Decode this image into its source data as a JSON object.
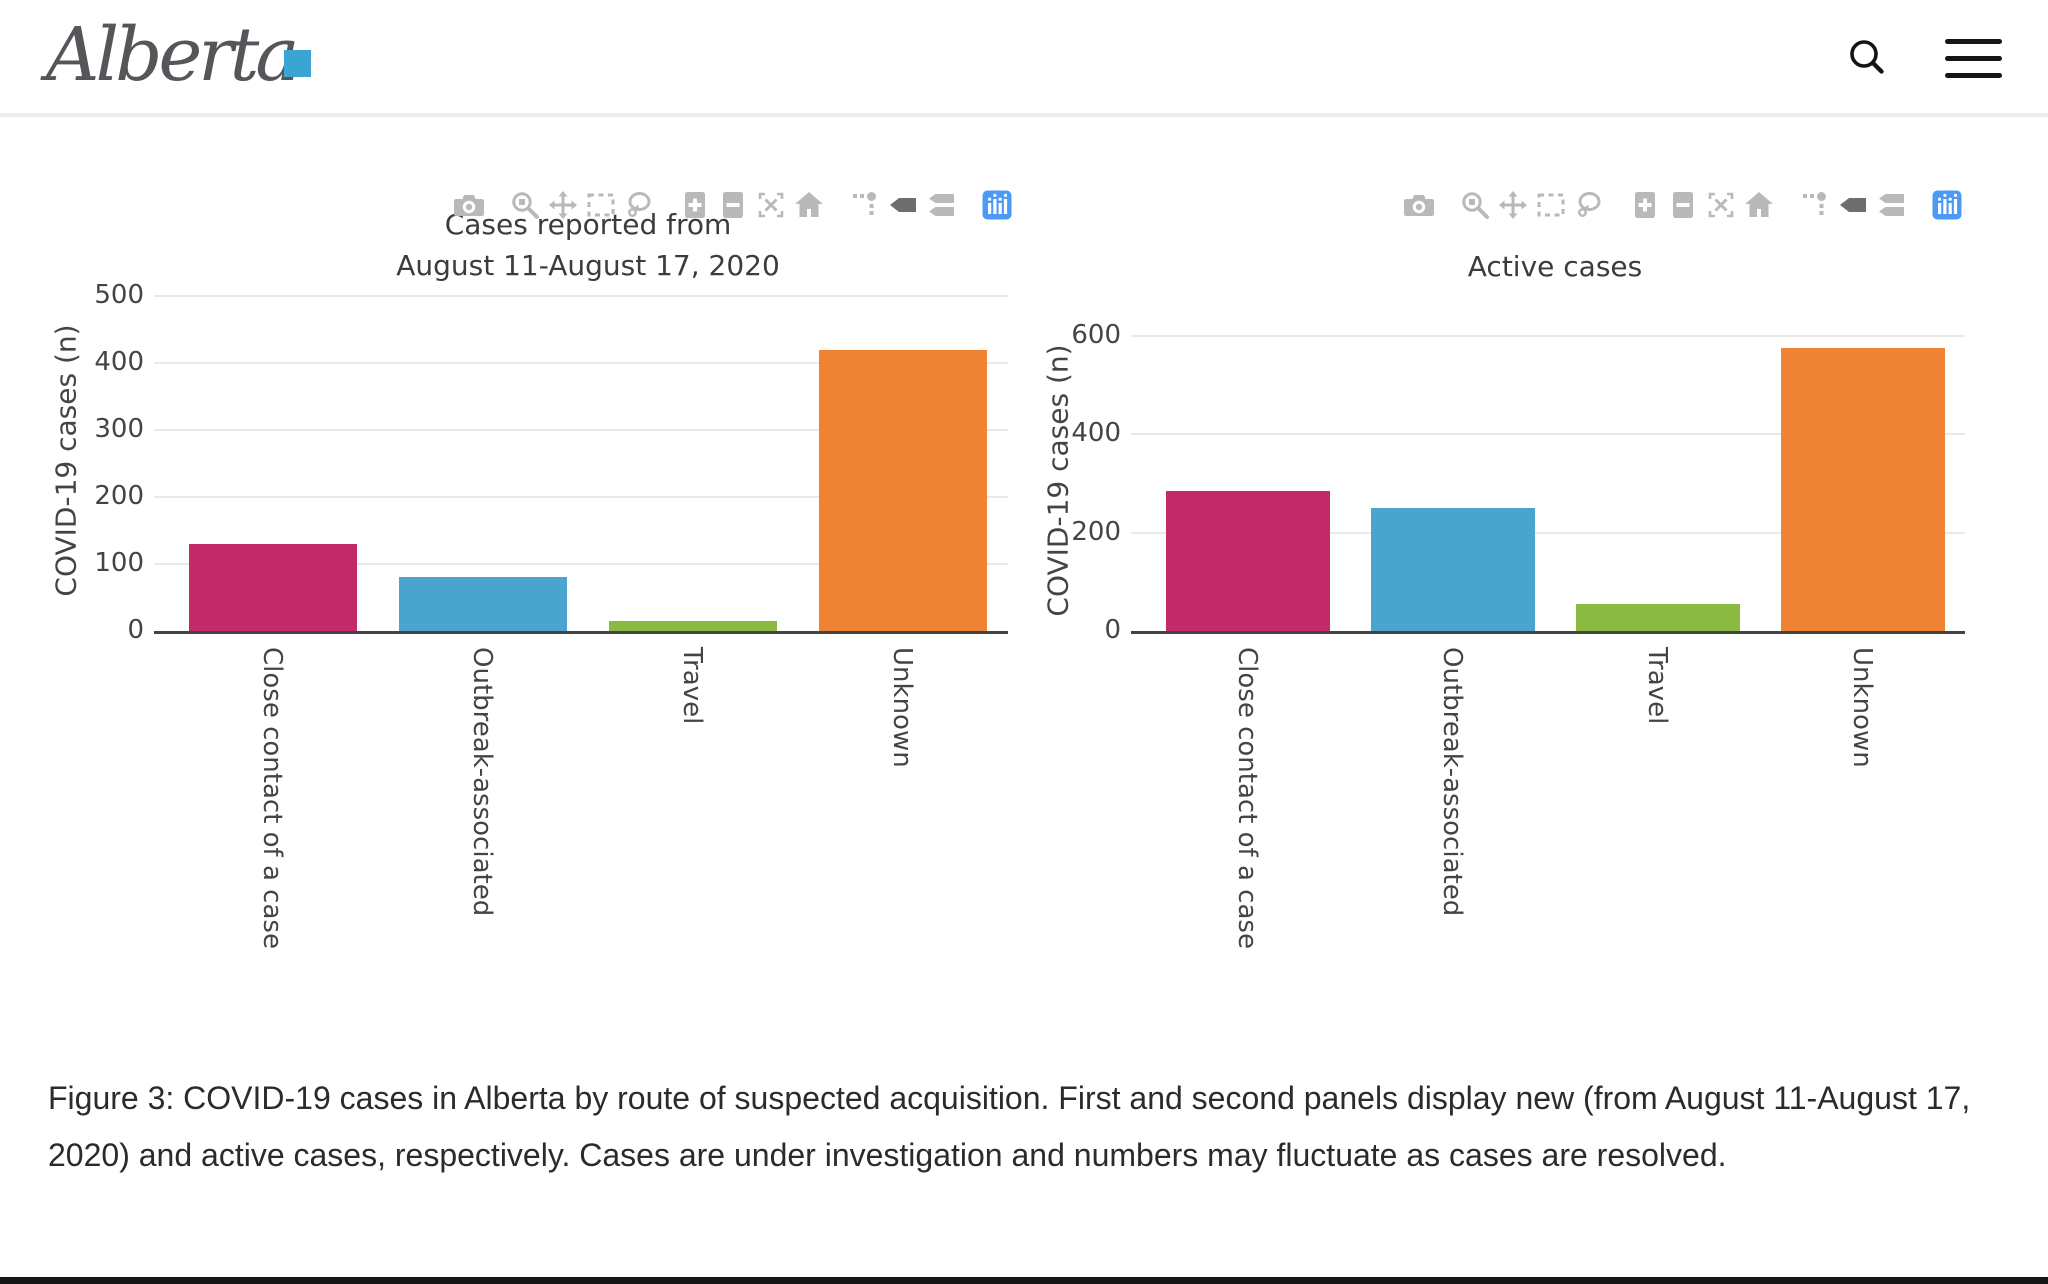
{
  "header": {
    "logo_text": "Alberta",
    "search_icon": "search-icon",
    "menu_icon": "hamburger-menu-icon"
  },
  "modebar": {
    "icons": [
      "camera-icon",
      "zoom-icon",
      "pan-icon",
      "box-select-icon",
      "lasso-select-icon",
      "zoom-in-icon",
      "zoom-out-icon",
      "autoscale-icon",
      "reset-axes-home-icon",
      "spikelines-icon",
      "hover-closest-icon",
      "hover-compare-icon",
      "plotly-logo-icon"
    ],
    "colors": {
      "default": "#b9b9b9",
      "active": "#6e6e6e",
      "logo_blue": "#4c9af5"
    }
  },
  "chart_data": [
    {
      "type": "bar",
      "title": "Cases reported from August 11-August 17, 2020",
      "title_lines": [
        "Cases reported from",
        "August 11-August 17, 2020"
      ],
      "xlabel": "",
      "ylabel": "COVID-19 cases (n)",
      "categories": [
        "Close contact of a case",
        "Outbreak-associated",
        "Travel",
        "Unknown"
      ],
      "values": [
        130,
        80,
        15,
        420
      ],
      "colors": [
        "#c32a69",
        "#4aa5ce",
        "#8bba42",
        "#ee8433"
      ],
      "ylim": [
        0,
        500
      ],
      "yticks": [
        0,
        100,
        200,
        300,
        400,
        500
      ],
      "grid": true,
      "legend": "none"
    },
    {
      "type": "bar",
      "title": "Active cases",
      "title_lines": [
        "Active cases"
      ],
      "xlabel": "",
      "ylabel": "COVID-19 cases (n)",
      "categories": [
        "Close contact of a case",
        "Outbreak-associated",
        "Travel",
        "Unknown"
      ],
      "values": [
        285,
        250,
        55,
        575
      ],
      "colors": [
        "#c32a69",
        "#4aa5ce",
        "#8bba42",
        "#ee8433"
      ],
      "ylim": [
        0,
        600
      ],
      "yticks": [
        0,
        200,
        400,
        600
      ],
      "grid": true,
      "legend": "none"
    }
  ],
  "caption": "Figure 3: COVID-19 cases in Alberta by route of suspected acquisition. First and second panels display new (from August 11-August 17, 2020) and active cases, respectively. Cases are under investigation and numbers may fluctuate as cases are resolved."
}
